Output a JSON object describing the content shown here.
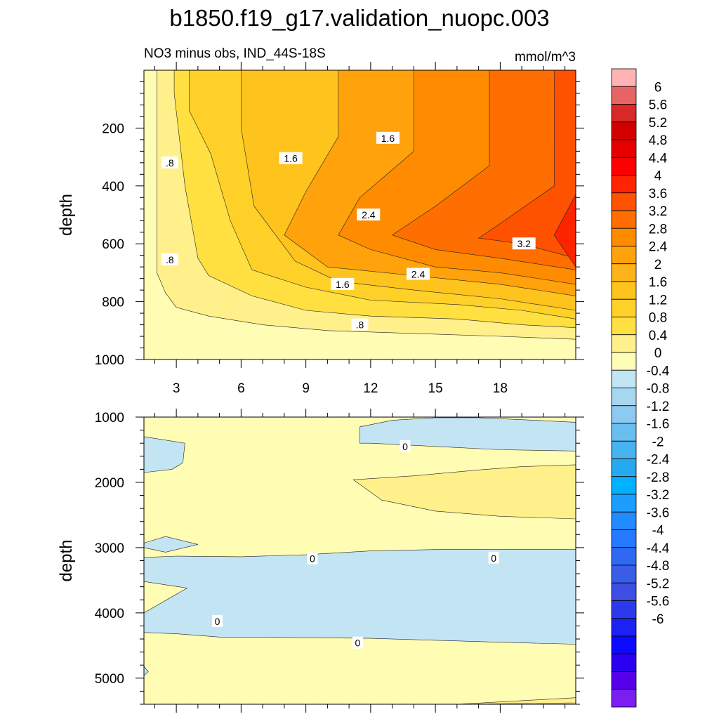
{
  "title": "b1850.f19_g17.validation_nuopc.003",
  "chart_data": [
    {
      "type": "contour",
      "subtitle_left": "NO3 minus obs, IND_44S-18S",
      "subtitle_right": "mmol/m^3",
      "ylabel": "depth",
      "y_reversed": true,
      "xlim": [
        1.5,
        21.5
      ],
      "ylim": [
        0,
        1000
      ],
      "x_ticks": [
        "3",
        "6",
        "9",
        "12",
        "15",
        "18"
      ],
      "x_tick_values": [
        3,
        6,
        9,
        12,
        15,
        18
      ],
      "y_ticks": [
        "200",
        "400",
        "600",
        "800",
        "1000"
      ],
      "y_tick_values": [
        200,
        400,
        600,
        800,
        1000
      ],
      "contour_labels": [
        {
          "text": ".8",
          "x": 2.7,
          "y": 320
        },
        {
          "text": "1.6",
          "x": 8.3,
          "y": 305
        },
        {
          "text": "1.6",
          "x": 12.8,
          "y": 235
        },
        {
          "text": ".8",
          "x": 2.7,
          "y": 655
        },
        {
          "text": "2.4",
          "x": 11.9,
          "y": 500
        },
        {
          "text": "2.4",
          "x": 14.2,
          "y": 705
        },
        {
          "text": "3.2",
          "x": 19.1,
          "y": 600
        },
        {
          "text": "1.6",
          "x": 10.7,
          "y": 740
        },
        {
          "text": ".8",
          "x": 11.5,
          "y": 880
        }
      ],
      "contours": [
        {
          "level": 0.4,
          "color": "#fff08c",
          "x": [
            2.1,
            2.5,
            3.0,
            4.5,
            7.0,
            10.0,
            14.0,
            18.0,
            21.5
          ],
          "y": [
            700,
            770,
            820,
            850,
            880,
            900,
            910,
            920,
            930
          ]
        },
        {
          "level": 0.8,
          "color": "#ffe040",
          "x": [
            2.9,
            3.4,
            4.0,
            4.5,
            6.5,
            9.0,
            12.0,
            16.0,
            19.0,
            21.5
          ],
          "y": [
            80,
            400,
            650,
            710,
            780,
            830,
            850,
            860,
            880,
            890
          ]
        },
        {
          "level": 1.2,
          "color": "#ffd128",
          "x": [
            3.6,
            4.6,
            5.5,
            6.5,
            9.0,
            12.0,
            16.0,
            19.0,
            21.5
          ],
          "y": [
            140,
            290,
            520,
            690,
            750,
            795,
            810,
            830,
            860
          ]
        },
        {
          "level": 1.6,
          "color": "#ffc31e",
          "x": [
            6.0,
            6.6,
            8.5,
            10.5,
            14.0,
            18.0,
            21.5
          ],
          "y": [
            200,
            470,
            660,
            730,
            760,
            790,
            830
          ]
        },
        {
          "level": 2.0,
          "color": "#ffa20c",
          "x": [
            10.5,
            9.0,
            8.0,
            10.0,
            14.0,
            18.0,
            21.5
          ],
          "y": [
            230,
            420,
            570,
            680,
            710,
            740,
            780
          ]
        },
        {
          "level": 2.4,
          "color": "#ff8c00",
          "x": [
            14.0,
            11.5,
            10.5,
            12.0,
            15.0,
            18.0,
            21.5
          ],
          "y": [
            280,
            440,
            570,
            620,
            680,
            700,
            740
          ]
        },
        {
          "level": 2.8,
          "color": "#ff6e00",
          "x": [
            17.5,
            15.0,
            13.0,
            15.0,
            18.0,
            21.5
          ],
          "y": [
            330,
            470,
            570,
            620,
            650,
            690
          ]
        },
        {
          "level": 3.2,
          "color": "#ff5200",
          "x": [
            20.5,
            18.0,
            17.0,
            19.0,
            21.5
          ],
          "y": [
            400,
            530,
            580,
            600,
            650
          ]
        },
        {
          "level": 3.6,
          "color": "#ff2400",
          "x": [
            21.5,
            20.5,
            21.5
          ],
          "y": [
            430,
            570,
            680
          ]
        }
      ]
    },
    {
      "type": "contour",
      "ylabel": "depth",
      "y_reversed": true,
      "xlim": [
        1.5,
        21.5
      ],
      "ylim": [
        1000,
        5400
      ],
      "y_ticks": [
        "1000",
        "2000",
        "3000",
        "4000",
        "5000"
      ],
      "y_tick_values": [
        1000,
        2000,
        3000,
        4000,
        5000
      ],
      "x_tick_values": [
        3,
        6,
        9,
        12,
        15,
        18
      ],
      "contour_labels": [
        {
          "text": "0",
          "x": 13.6,
          "y": 1450
        },
        {
          "text": "0",
          "x": 9.3,
          "y": 3170
        },
        {
          "text": "0",
          "x": 17.7,
          "y": 3160
        },
        {
          "text": "0",
          "x": 4.9,
          "y": 4130
        },
        {
          "text": "0",
          "x": 11.4,
          "y": 4460
        }
      ],
      "regions": [
        {
          "level": -0.4,
          "color": "#c3e4f3",
          "x": [
            11.5,
            11.5,
            13.0,
            15.0,
            17.0,
            19.0,
            21.5,
            21.5,
            18.0,
            15.0,
            12.0
          ],
          "y": [
            1400,
            1150,
            1050,
            1010,
            1010,
            1040,
            1080,
            1520,
            1500,
            1450,
            1400
          ]
        },
        {
          "level": -0.4,
          "color": "#c3e4f3",
          "x": [
            1.5,
            3.4,
            3.3,
            2.8,
            1.5
          ],
          "y": [
            1300,
            1400,
            1700,
            1800,
            1850
          ]
        },
        {
          "level": -0.4,
          "color": "#c3e4f3",
          "x": [
            1.5,
            2.5,
            4.0,
            2.5,
            1.5
          ],
          "y": [
            2930,
            2830,
            2950,
            3070,
            3000
          ]
        },
        {
          "level": -0.4,
          "color": "#c3e4f3",
          "x": [
            1.5,
            3.0,
            6.0,
            9.0,
            12.0,
            15.0,
            18.0,
            21.5,
            21.5,
            18.0,
            15.0,
            12.0,
            9.0,
            6.5,
            5.0,
            3.0,
            1.5,
            1.5,
            3.5,
            1.5
          ],
          "y": [
            3150,
            3130,
            3140,
            3110,
            3050,
            3030,
            3030,
            3030,
            4480,
            4450,
            4420,
            4390,
            4380,
            4370,
            4370,
            4320,
            4300,
            4000,
            3620,
            3520
          ]
        },
        {
          "level": -0.4,
          "color": "#c3e4f3",
          "x": [
            1.5,
            1.7,
            1.5
          ],
          "y": [
            4820,
            4900,
            4960
          ]
        },
        {
          "level": 0.4,
          "color": "#fff08c",
          "x": [
            11.2,
            14.0,
            17.0,
            19.0,
            21.5,
            21.5,
            18.0,
            15.0,
            12.5
          ],
          "y": [
            1960,
            1900,
            1810,
            1760,
            1730,
            2560,
            2520,
            2440,
            2270
          ]
        },
        {
          "level": 0.4,
          "color": "#fff08c",
          "x": [
            21.5,
            16.0,
            21.5
          ],
          "y": [
            5380,
            5400,
            5300
          ]
        }
      ]
    }
  ],
  "colorbar": {
    "colors": [
      "#ffb4b4",
      "#e86464",
      "#d82828",
      "#d20000",
      "#e60000",
      "#ff0000",
      "#ff2400",
      "#ff5200",
      "#ff6e00",
      "#ff8c00",
      "#ffa20c",
      "#ffb31a",
      "#ffc31e",
      "#ffd128",
      "#ffe040",
      "#fff08c",
      "#fffcb4",
      "#c3e4f3",
      "#a7d6ef",
      "#8ccaef",
      "#68bfef",
      "#47b4ef",
      "#27a9f0",
      "#00b1ff",
      "#1c9dff",
      "#228bff",
      "#2679ff",
      "#2f69f3",
      "#3a5de8",
      "#3c4ee4",
      "#2d3aec",
      "#1c22f2",
      "#0b0aff",
      "#2b00f0",
      "#5500e8",
      "#7a1ff0"
    ],
    "labels": [
      "6",
      "5.6",
      "5.2",
      "4.8",
      "4.4",
      "4",
      "3.6",
      "3.2",
      "2.8",
      "2.4",
      "2",
      "1.6",
      "1.2",
      "0.8",
      "0.4",
      "0",
      "-0.4",
      "-0.8",
      "-1.2",
      "-1.6",
      "-2",
      "-2.4",
      "-2.8",
      "-3.2",
      "-3.6",
      "-4",
      "-4.4",
      "-4.8",
      "-5.2",
      "-5.6",
      "-6"
    ]
  }
}
